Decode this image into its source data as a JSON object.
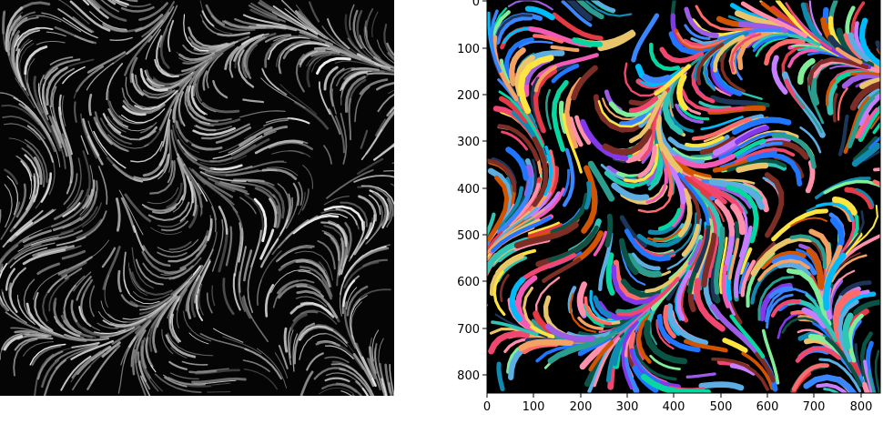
{
  "left_image": {
    "description_icon": "grayscale-microscopy-image",
    "colors": {
      "background": "#000000",
      "fiber": "#d8d8d8"
    }
  },
  "right_plot": {
    "icon": "segmentation-label-map",
    "x_ticks": [
      "0",
      "100",
      "200",
      "300",
      "400",
      "500",
      "600",
      "700",
      "800"
    ],
    "y_ticks": [
      "0",
      "100",
      "200",
      "300",
      "400",
      "500",
      "600",
      "700",
      "800"
    ],
    "palette": [
      "#1f77ff",
      "#ff6b6b",
      "#2ec4b6",
      "#9b5de5",
      "#f15bb5",
      "#00bbf9",
      "#fee440",
      "#e63946",
      "#1d3557",
      "#2a9d8f",
      "#e9c46a",
      "#f4a261",
      "#8338ec",
      "#3a86ff",
      "#06d6a0",
      "#ef476f",
      "#118ab2",
      "#c77dff",
      "#ff8fab",
      "#80ed99",
      "#7b2d26",
      "#0b5345",
      "#d35400",
      "#5dade2"
    ]
  }
}
